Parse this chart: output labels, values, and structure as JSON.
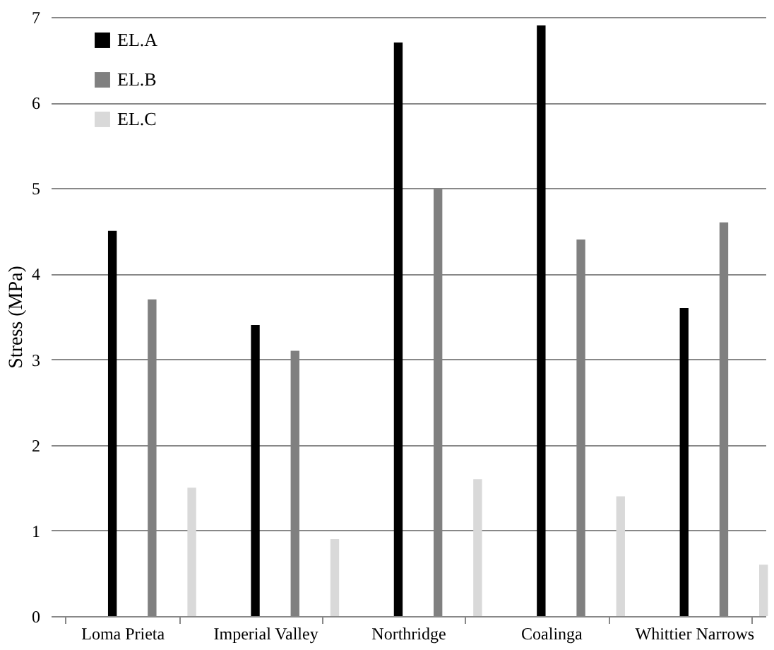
{
  "chart_data": {
    "type": "bar",
    "ylabel": "Stress (MPa)",
    "categories": [
      "Loma Prieta",
      "Imperial Valley",
      "Northridge",
      "Coalinga",
      "Whittier Narrows"
    ],
    "series": [
      {
        "name": "EL.A",
        "color": "#000000",
        "values": [
          4.5,
          3.4,
          6.7,
          6.9,
          3.6
        ]
      },
      {
        "name": "EL.B",
        "color": "#808080",
        "values": [
          3.7,
          3.1,
          5.0,
          4.4,
          4.6
        ]
      },
      {
        "name": "EL.C",
        "color": "#d9d9d9",
        "values": [
          1.5,
          0.9,
          1.6,
          1.4,
          0.6
        ]
      }
    ],
    "ylim": [
      0,
      7
    ],
    "yticks": [
      0,
      1,
      2,
      3,
      4,
      5,
      6,
      7
    ],
    "grid": "y",
    "legend": "top left"
  }
}
